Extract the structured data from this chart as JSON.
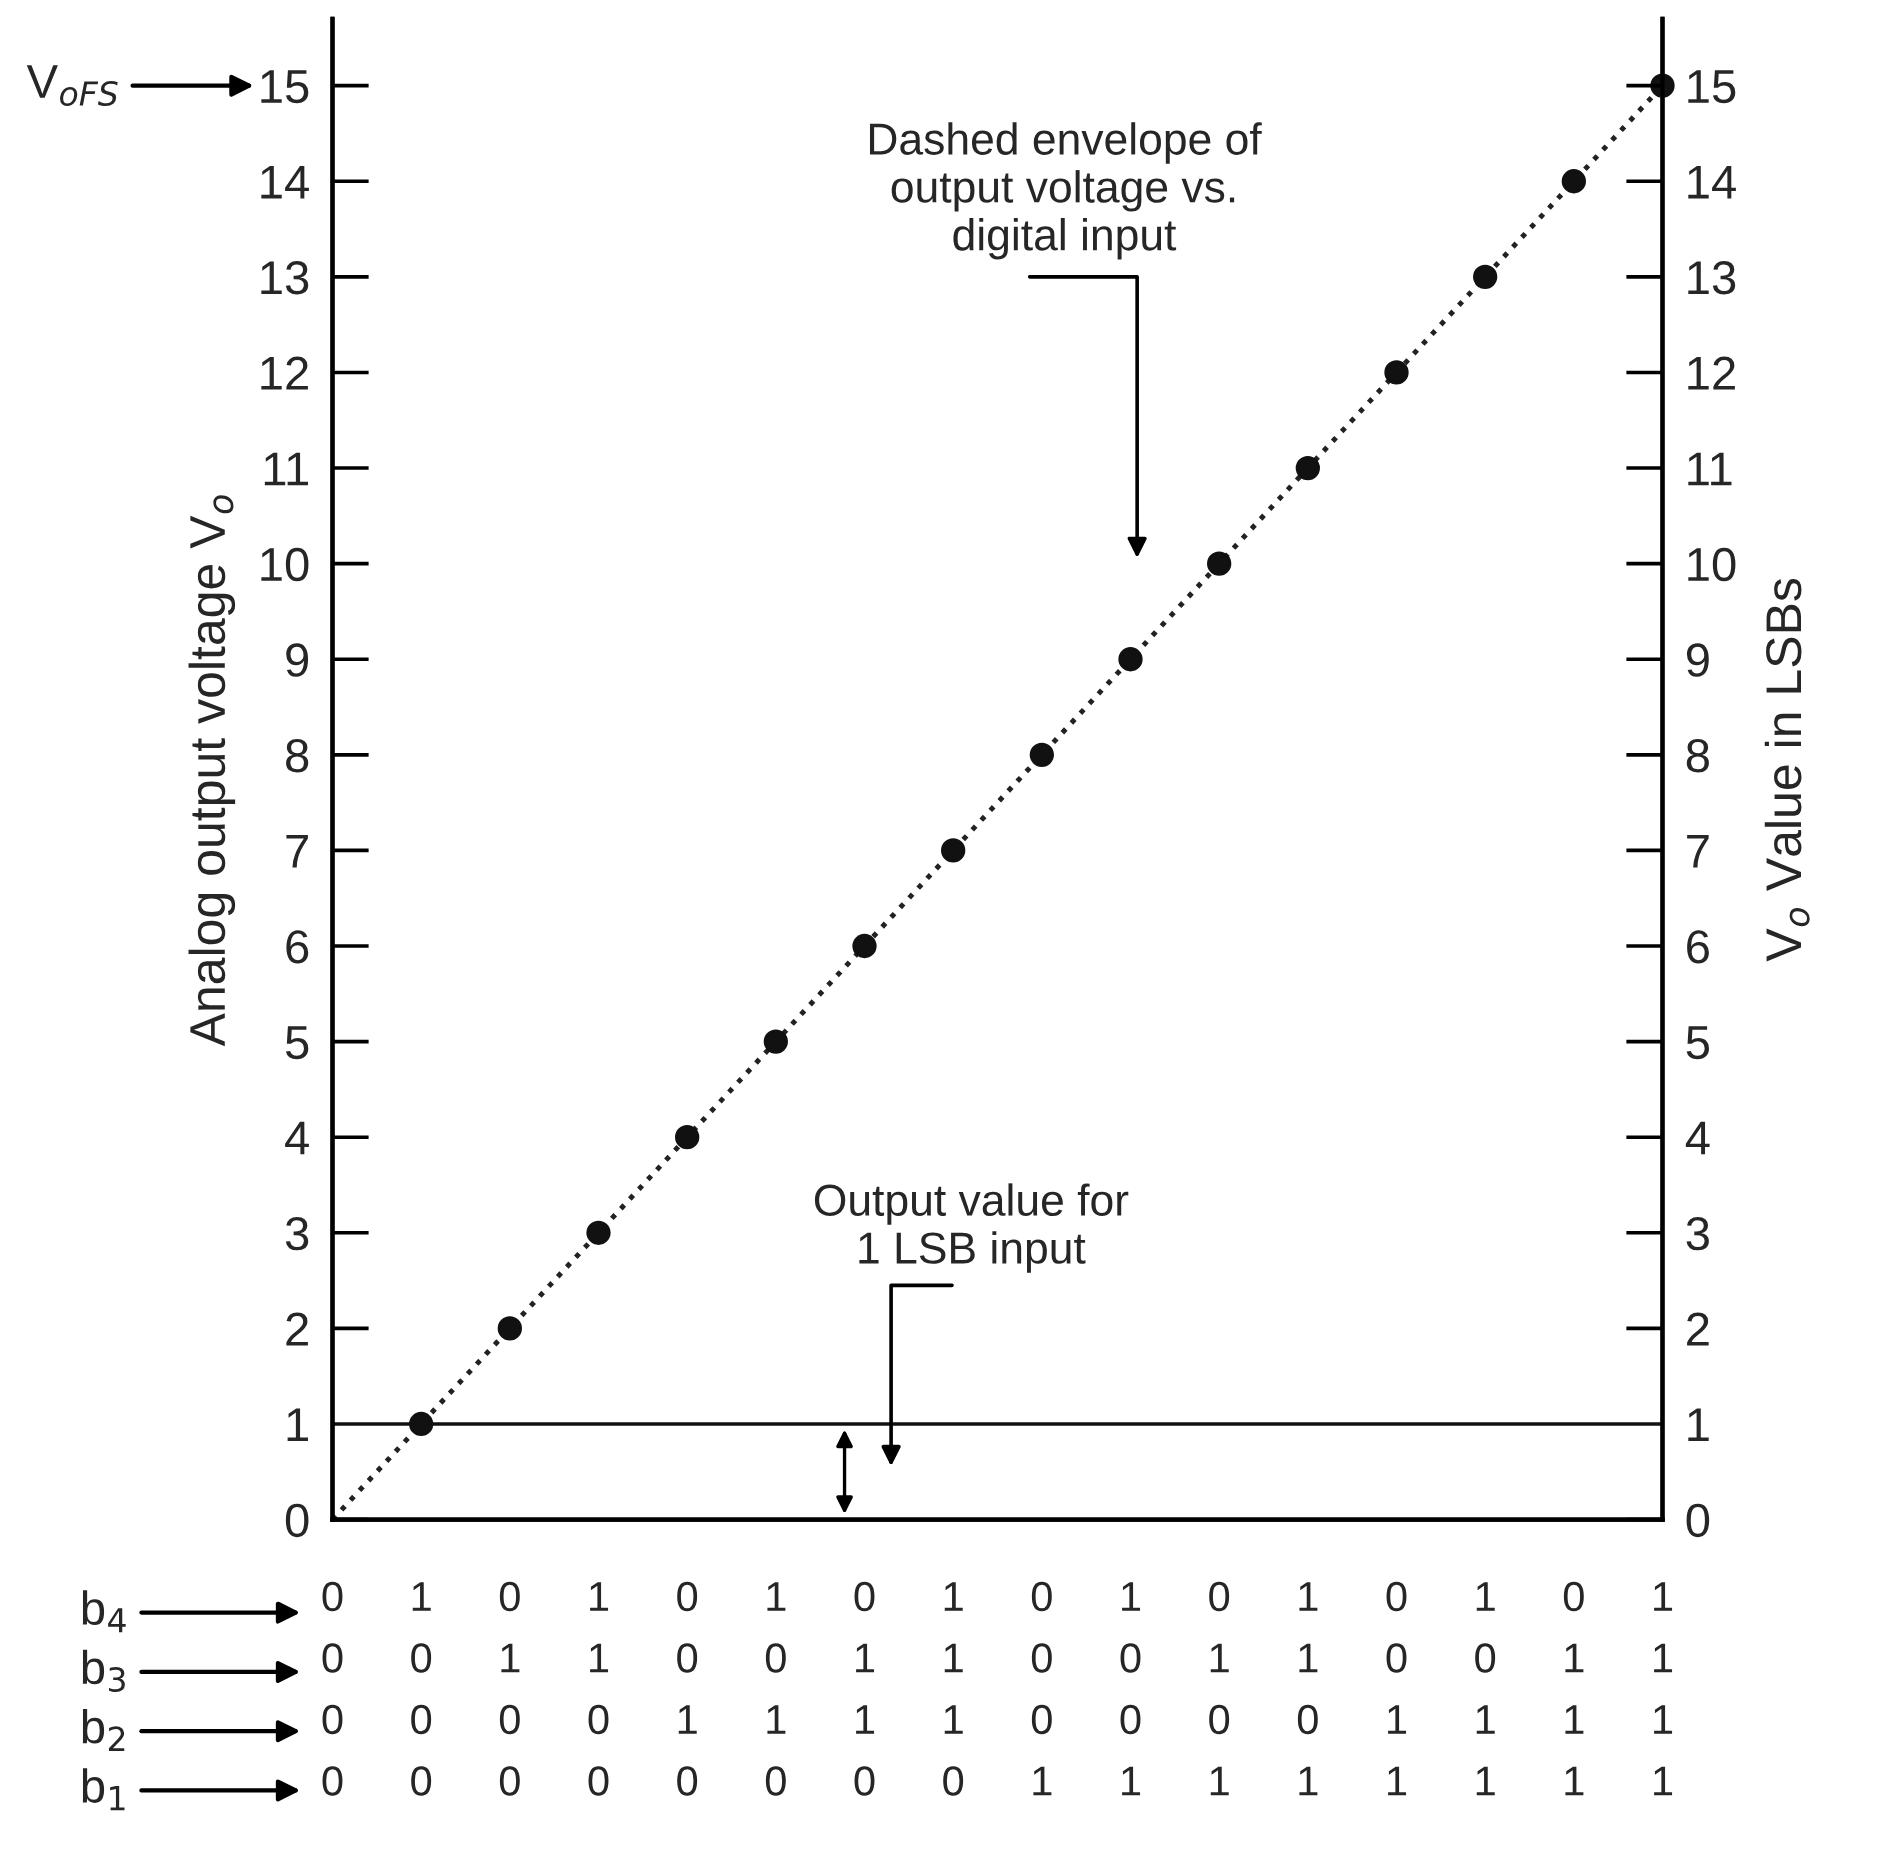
{
  "chart_data": {
    "type": "scatter",
    "categories": [
      "0\n0\n0\n0",
      "1\n0\n0\n0",
      "0\n1\n0\n0",
      "1\n1\n0\n0",
      "0\n0\n1\n0",
      "1\n0\n1\n0",
      "0\n1\n1\n0",
      "1\n1\n1\n0",
      "0\n0\n0\n1",
      "1\n0\n0\n1",
      "0\n1\n0\n1",
      "1\n1\n0\n1",
      "0\n0\n1\n1",
      "1\n0\n1\n1",
      "0\n1\n1\n1",
      "1\n1\n1\n1"
    ],
    "series": [
      {
        "type": "line",
        "color": "#222222",
        "line_style": "dotted",
        "marker": "none",
        "values": [
          0,
          1,
          2,
          3,
          4,
          5,
          6,
          7,
          8,
          9,
          10,
          11,
          12,
          13,
          14,
          15
        ]
      },
      {
        "color": "#111111",
        "marker": "circle",
        "values": [
          null,
          1,
          2,
          3,
          4,
          5,
          6,
          7,
          8,
          9,
          10,
          11,
          12,
          13,
          14,
          15
        ]
      }
    ],
    "ylabel": "Analog output voltage V$_{o}$",
    "y2label": "V$_{o}$ Value in LSBs",
    "ylim": [
      0,
      15.7
    ],
    "yticks": [
      0,
      1,
      2,
      3,
      4,
      5,
      6,
      7,
      8,
      9,
      10,
      11,
      12,
      13,
      14,
      15
    ],
    "y2lim": [
      0,
      15.7
    ],
    "y2ticks": [
      0,
      1,
      2,
      3,
      4,
      5,
      6,
      7,
      8,
      9,
      10,
      11,
      12,
      13,
      14,
      15
    ],
    "ref_lines": [
      {
        "axis": "y",
        "value": 1,
        "label": null,
        "color": "#111111"
      }
    ],
    "annotations": [
      "V$_{oFS}$",
      "Dashed envelope of\noutput voltage vs.\ndigital input",
      "Output value for\n1 LSB input",
      "b$_{4}$",
      "b$_{3}$",
      "b$_{2}$",
      "b$_{1}$"
    ],
    "grid": false
  }
}
